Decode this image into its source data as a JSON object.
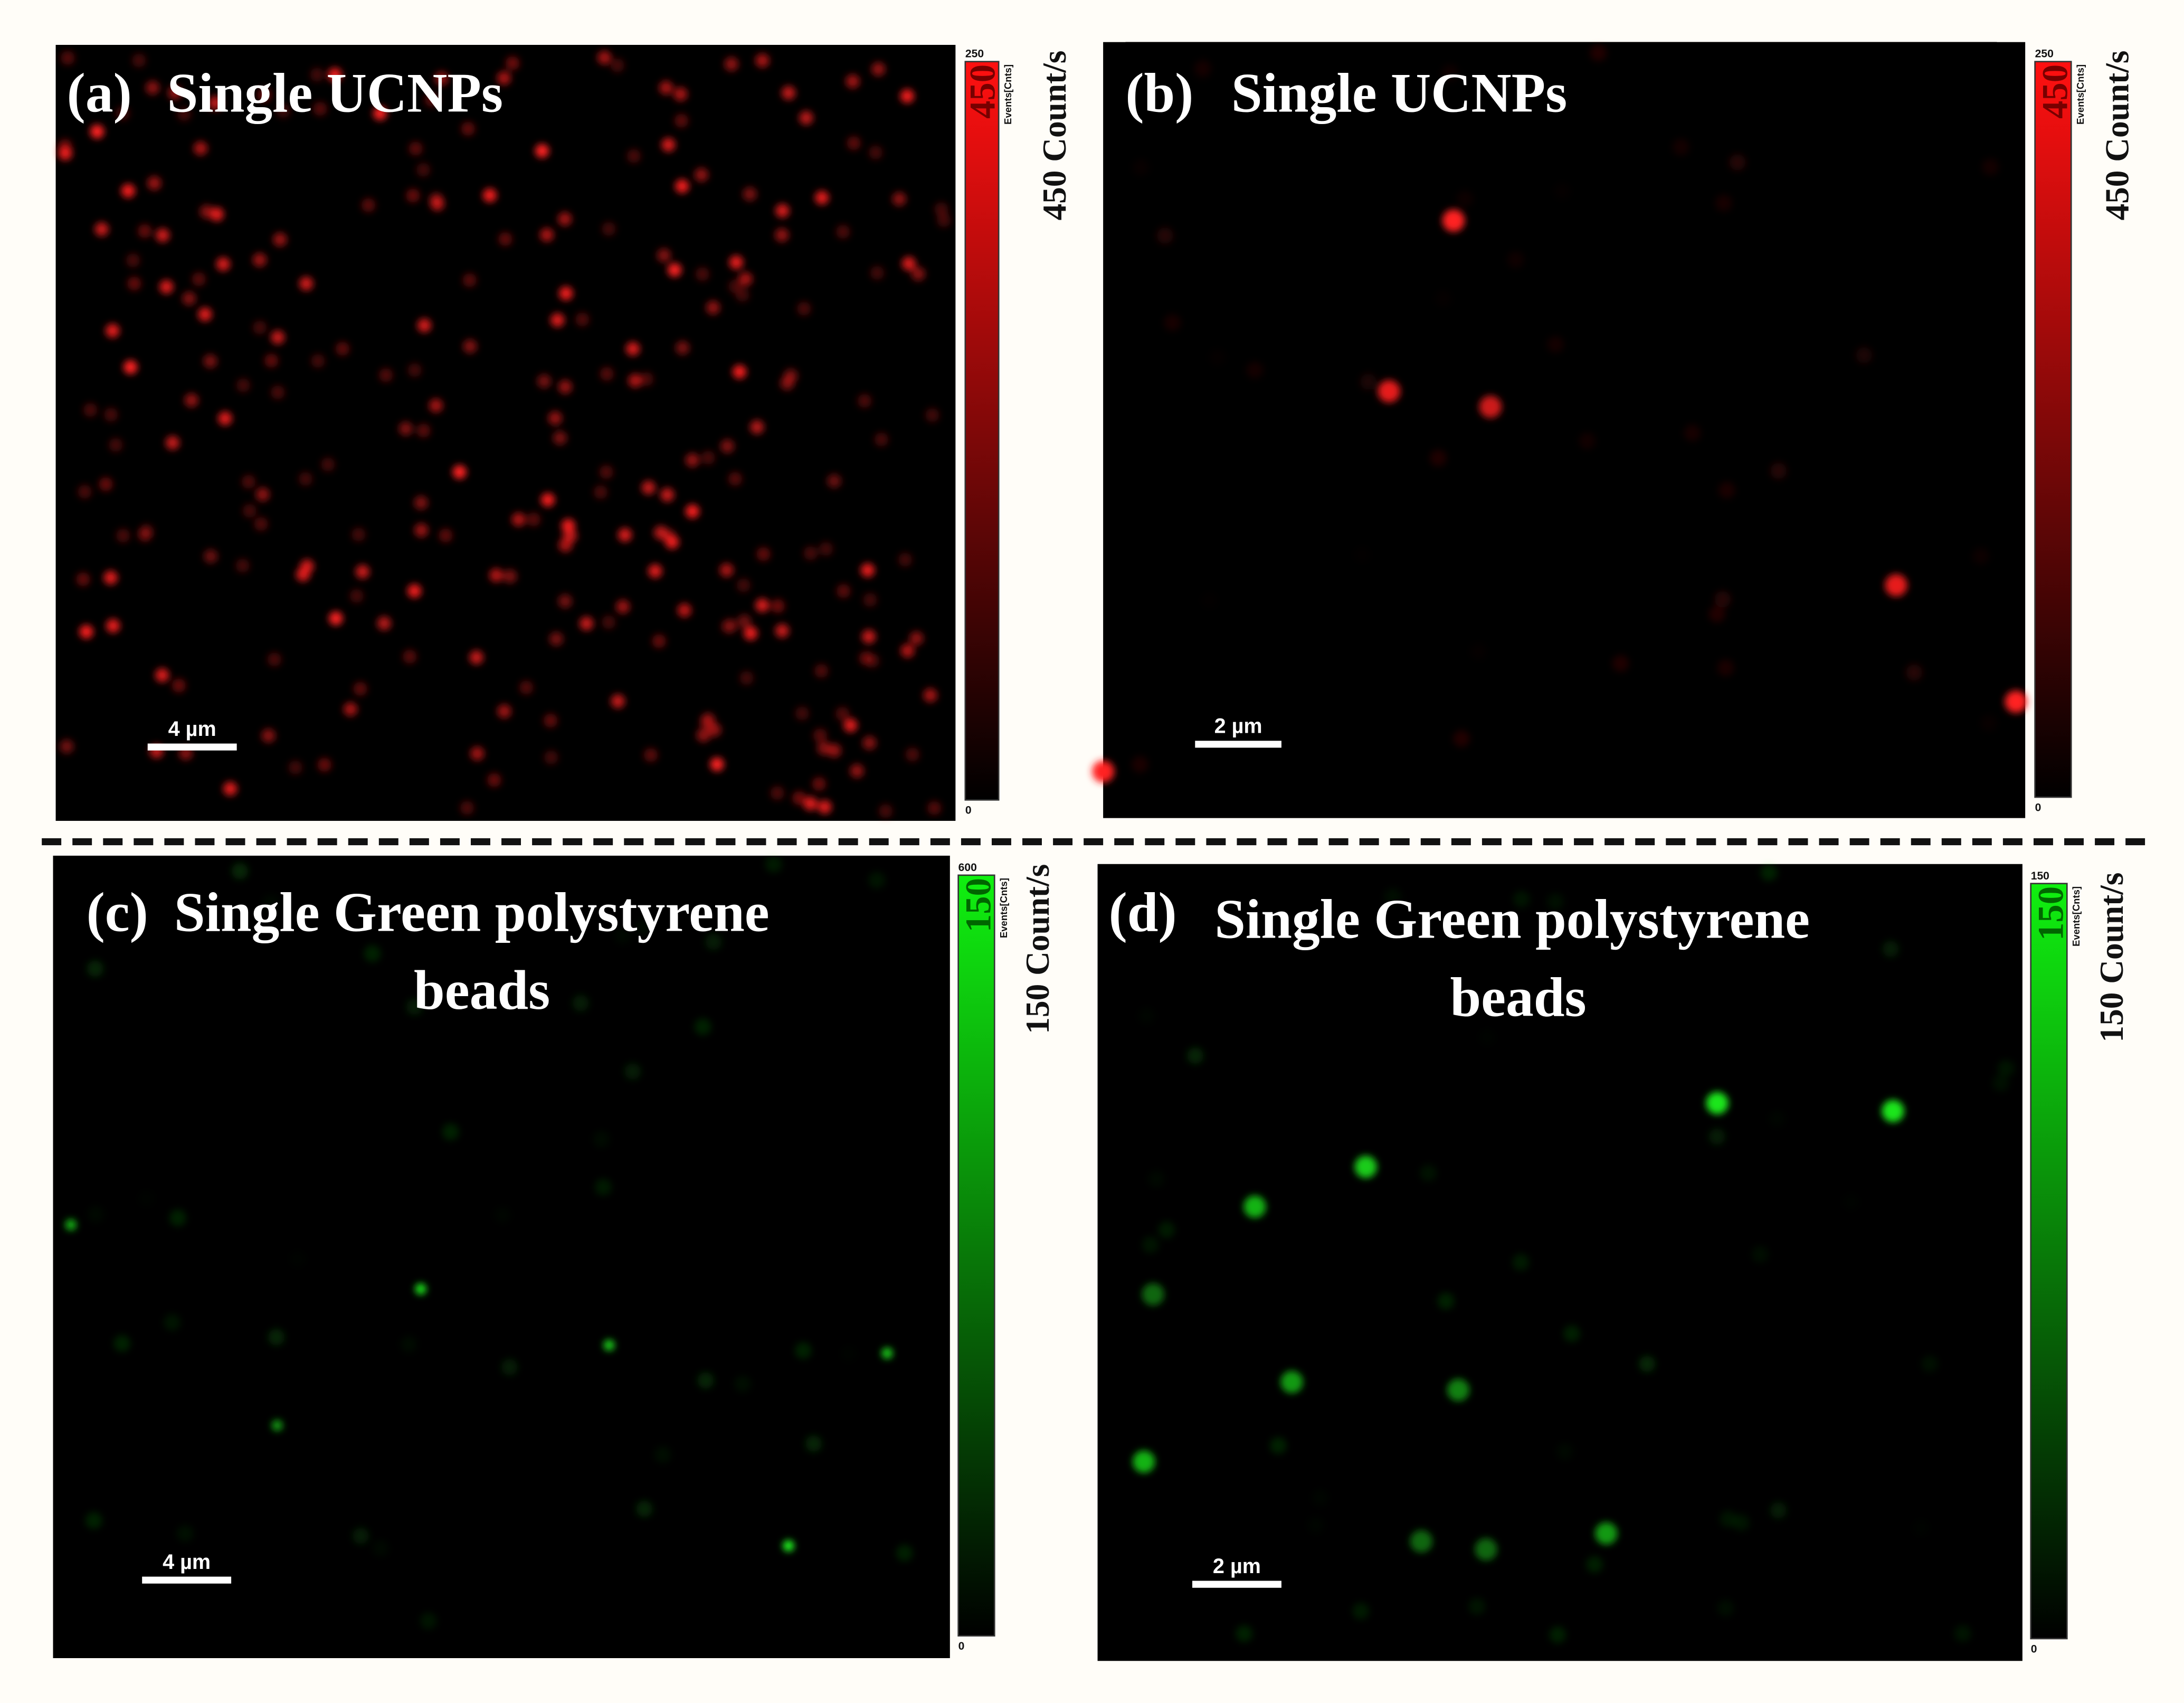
{
  "panels": [
    {
      "label": "(a)",
      "title": [
        "Single UCNPs"
      ],
      "scale_bar": "4 µm",
      "colorbar": {
        "max": "250",
        "min": "0",
        "unit": "Events[Cnts]",
        "value": "450"
      },
      "side_label": "450 Count/s",
      "color": "red"
    },
    {
      "label": "(b)",
      "title": [
        "Single UCNPs"
      ],
      "scale_bar": "2 µm",
      "colorbar": {
        "max": "250",
        "min": "0",
        "unit": "Events[Cnts]",
        "value": "450"
      },
      "side_label": "450 Count/s",
      "color": "red"
    },
    {
      "label": "(c)",
      "title": [
        "Single Green polystyrene",
        "beads"
      ],
      "scale_bar": "4 µm",
      "colorbar": {
        "max": "600",
        "min": "0",
        "unit": "Events[Cnts]",
        "value": "150"
      },
      "side_label": "150 Count/s",
      "color": "green"
    },
    {
      "label": "(d)",
      "title": [
        "Single Green polystyrene",
        "beads"
      ],
      "scale_bar": "2 µm",
      "colorbar": {
        "max": "150",
        "min": "0",
        "unit": "Events[Cnts]",
        "value": "150"
      },
      "side_label": "150 Count/s",
      "color": "green"
    }
  ]
}
